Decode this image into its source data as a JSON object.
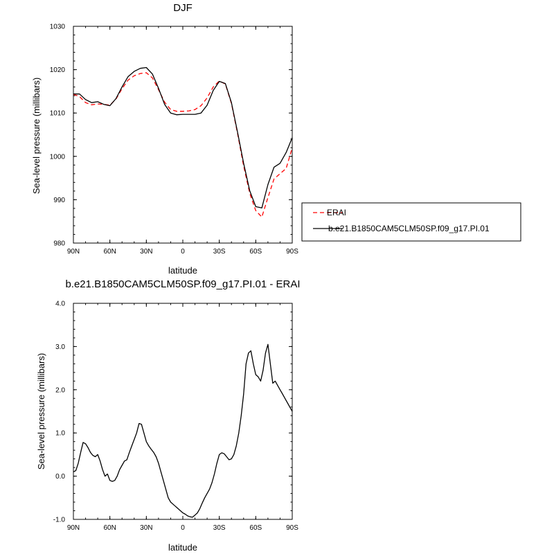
{
  "chart_data": [
    {
      "type": "line",
      "title": "DJF",
      "xlabel": "latitude",
      "ylabel": "Sea-level pressure (millibars)",
      "xlim": [
        90,
        -90
      ],
      "ylim": [
        980,
        1030
      ],
      "x_ticks": [
        {
          "v": 90,
          "label": "90N"
        },
        {
          "v": 60,
          "label": "60N"
        },
        {
          "v": 30,
          "label": "30N"
        },
        {
          "v": 0,
          "label": "0"
        },
        {
          "v": -30,
          "label": "30S"
        },
        {
          "v": -60,
          "label": "60S"
        },
        {
          "v": -90,
          "label": "90S"
        }
      ],
      "y_ticks": [
        {
          "v": 980,
          "label": "980"
        },
        {
          "v": 990,
          "label": "990"
        },
        {
          "v": 1000,
          "label": "1000"
        },
        {
          "v": 1010,
          "label": "1010"
        },
        {
          "v": 1020,
          "label": "1020"
        },
        {
          "v": 1030,
          "label": "1030"
        }
      ],
      "legend": {
        "placement": "right"
      },
      "series": [
        {
          "name": "ERAI",
          "color": "#ff0000",
          "dash": true,
          "x": [
            90,
            85,
            80,
            75,
            70,
            65,
            60,
            55,
            50,
            45,
            40,
            35,
            30,
            25,
            20,
            15,
            10,
            5,
            0,
            -5,
            -10,
            -15,
            -20,
            -25,
            -30,
            -35,
            -40,
            -45,
            -50,
            -55,
            -60,
            -65,
            -70,
            -75,
            -80,
            -85,
            -90
          ],
          "y": [
            1014.3,
            1013.8,
            1012.4,
            1011.9,
            1012.1,
            1012.0,
            1011.8,
            1013.2,
            1015.6,
            1017.6,
            1018.6,
            1019.1,
            1019.3,
            1018.1,
            1015.4,
            1012.5,
            1010.8,
            1010.4,
            1010.4,
            1010.5,
            1010.8,
            1011.7,
            1013.5,
            1016.0,
            1017.4,
            1016.7,
            1012.2,
            1005.3,
            997.8,
            991.5,
            987.5,
            986.0,
            990.5,
            994.8,
            996.0,
            997.2,
            1002.0
          ]
        },
        {
          "name": "b.e21.B1850CAM5CLM50SP.f09_g17.PI.01",
          "color": "#000000",
          "dash": false,
          "x": [
            90,
            85,
            80,
            75,
            70,
            65,
            60,
            55,
            50,
            45,
            40,
            35,
            30,
            25,
            20,
            15,
            10,
            5,
            0,
            -5,
            -10,
            -15,
            -20,
            -25,
            -30,
            -35,
            -40,
            -45,
            -50,
            -55,
            -60,
            -65,
            -70,
            -75,
            -80,
            -85,
            -90
          ],
          "y": [
            1014.4,
            1014.4,
            1013.1,
            1012.4,
            1012.6,
            1012.0,
            1011.7,
            1013.3,
            1016.0,
            1018.4,
            1019.6,
            1020.3,
            1020.5,
            1019.0,
            1015.7,
            1012.0,
            1010.0,
            1009.6,
            1009.7,
            1009.7,
            1009.7,
            1010.0,
            1011.8,
            1015.2,
            1017.3,
            1016.8,
            1012.4,
            1005.6,
            998.4,
            992.1,
            988.4,
            988.1,
            993.5,
            997.5,
            998.4,
            1000.9,
            1004.3
          ]
        }
      ]
    },
    {
      "type": "line",
      "title": "b.e21.B1850CAM5CLM50SP.f09_g17.PI.01 - ERAI",
      "xlabel": "latitude",
      "ylabel": "Sea-level pressure (millibars)",
      "xlim": [
        90,
        -90
      ],
      "ylim": [
        -1.0,
        4.0
      ],
      "x_ticks": [
        {
          "v": 90,
          "label": "90N"
        },
        {
          "v": 60,
          "label": "60N"
        },
        {
          "v": 30,
          "label": "30N"
        },
        {
          "v": 0,
          "label": "0"
        },
        {
          "v": -30,
          "label": "30S"
        },
        {
          "v": -60,
          "label": "60S"
        },
        {
          "v": -90,
          "label": "90S"
        }
      ],
      "y_ticks": [
        {
          "v": -1.0,
          "label": "-1.0"
        },
        {
          "v": 0.0,
          "label": "0.0"
        },
        {
          "v": 1.0,
          "label": "1.0"
        },
        {
          "v": 2.0,
          "label": "2.0"
        },
        {
          "v": 3.0,
          "label": "3.0"
        },
        {
          "v": 4.0,
          "label": "4.0"
        }
      ],
      "series": [
        {
          "color": "#000000",
          "dash": false,
          "x": [
            90,
            88,
            86,
            84,
            82,
            80,
            78,
            76,
            74,
            72,
            70,
            68,
            66,
            64,
            62,
            60,
            58,
            56,
            54,
            52,
            50,
            48,
            46,
            44,
            42,
            40,
            38,
            36,
            34,
            32,
            30,
            28,
            26,
            24,
            22,
            20,
            18,
            16,
            14,
            12,
            10,
            8,
            6,
            4,
            2,
            0,
            -2,
            -4,
            -6,
            -8,
            -10,
            -12,
            -14,
            -16,
            -18,
            -20,
            -22,
            -24,
            -26,
            -28,
            -30,
            -32,
            -34,
            -36,
            -38,
            -40,
            -42,
            -44,
            -46,
            -48,
            -50,
            -52,
            -54,
            -56,
            -58,
            -60,
            -62,
            -64,
            -66,
            -68,
            -70,
            -72,
            -74,
            -76,
            -78,
            -80,
            -82,
            -84,
            -86,
            -88,
            -90
          ],
          "y": [
            0.1,
            0.13,
            0.3,
            0.55,
            0.78,
            0.75,
            0.66,
            0.55,
            0.48,
            0.45,
            0.5,
            0.35,
            0.15,
            0.0,
            0.05,
            -0.1,
            -0.12,
            -0.1,
            0.0,
            0.15,
            0.25,
            0.35,
            0.38,
            0.55,
            0.7,
            0.85,
            1.0,
            1.22,
            1.2,
            1.0,
            0.8,
            0.7,
            0.62,
            0.55,
            0.45,
            0.3,
            0.1,
            -0.1,
            -0.3,
            -0.5,
            -0.6,
            -0.65,
            -0.7,
            -0.75,
            -0.8,
            -0.85,
            -0.88,
            -0.92,
            -0.94,
            -0.95,
            -0.9,
            -0.85,
            -0.75,
            -0.62,
            -0.5,
            -0.4,
            -0.3,
            -0.15,
            0.05,
            0.3,
            0.5,
            0.54,
            0.52,
            0.45,
            0.38,
            0.4,
            0.5,
            0.7,
            1.0,
            1.4,
            1.9,
            2.6,
            2.85,
            2.9,
            2.6,
            2.35,
            2.3,
            2.2,
            2.45,
            2.85,
            3.05,
            2.6,
            2.15,
            2.2,
            2.1,
            2.0,
            1.9,
            1.8,
            1.7,
            1.6,
            1.5
          ]
        }
      ]
    }
  ]
}
